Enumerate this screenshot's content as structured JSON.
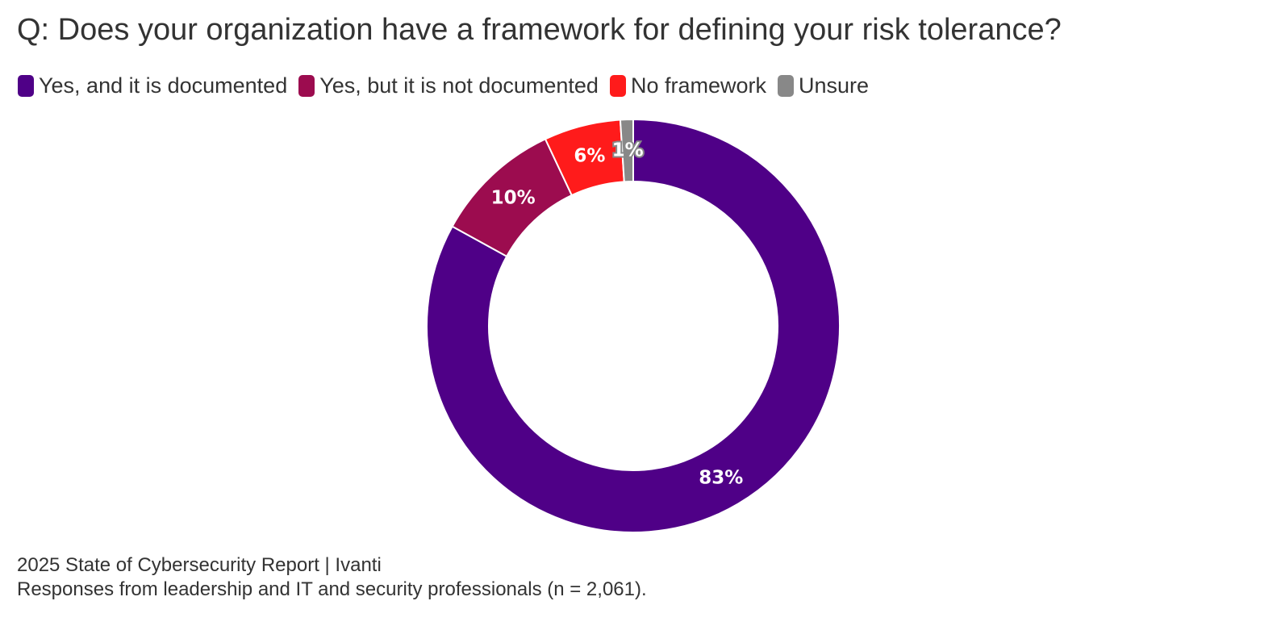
{
  "chart_data": {
    "type": "pie",
    "title": "Q: Does your organization have a framework for defining your risk tolerance?",
    "categories": [
      "Yes, and it is documented",
      "Yes, but it is not documented",
      "No framework",
      "Unsure"
    ],
    "values": [
      83,
      10,
      6,
      1
    ],
    "labels": [
      "83%",
      "10%",
      "6%",
      "1%"
    ],
    "colors": [
      "#4f0087",
      "#9c0c4f",
      "#ff1b1b",
      "#888888"
    ],
    "legend_position": "top-left",
    "donut": true
  },
  "footer": {
    "source": "2025 State of Cybersecurity Report | Ivanti",
    "note": "Responses from leadership and IT and security professionals (n = 2,061)."
  }
}
